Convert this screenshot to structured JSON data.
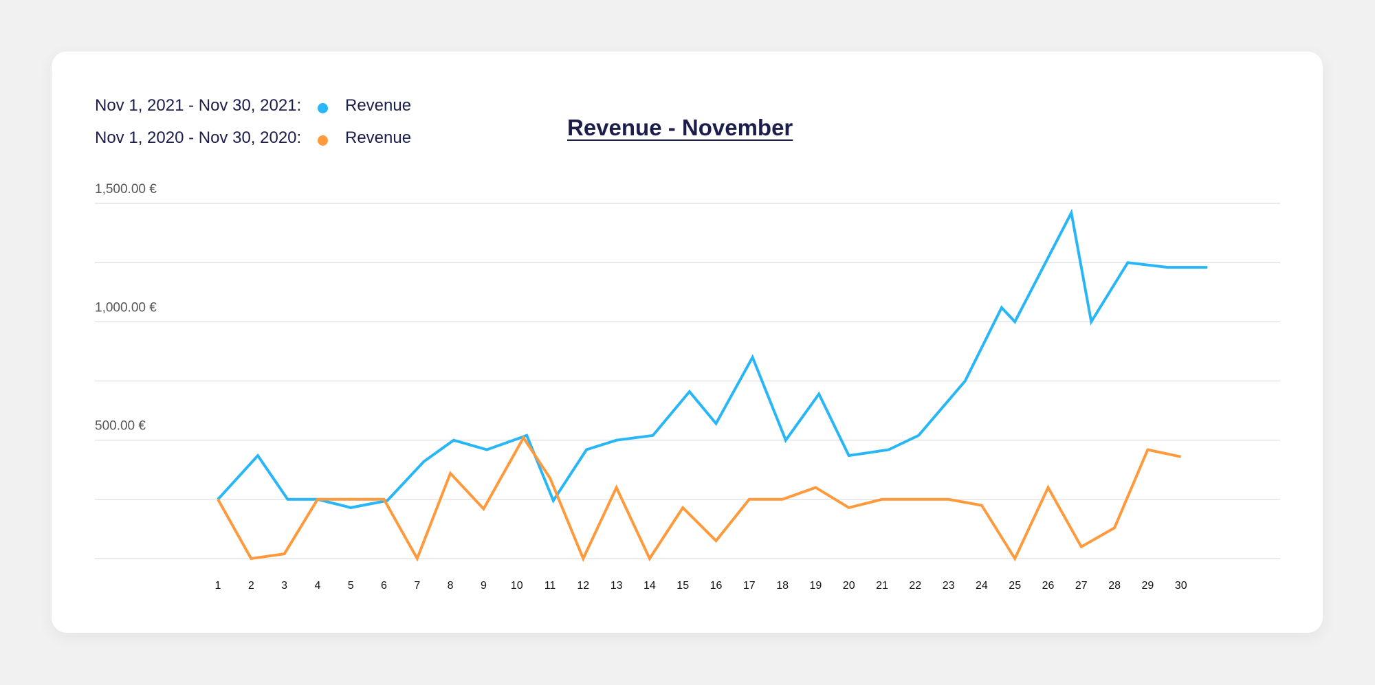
{
  "legend": [
    {
      "range": "Nov 1, 2021 - Nov 30, 2021:",
      "series": "Revenue",
      "color": "#29b6f6"
    },
    {
      "range": "Nov 1, 2020 - Nov 30, 2020:",
      "series": "Revenue",
      "color": "#ff9a3c"
    }
  ],
  "chart_data": {
    "type": "line",
    "title": "Revenue - November",
    "xlabel": "",
    "ylabel": "",
    "x": [
      "1",
      "2",
      "3",
      "4",
      "5",
      "6",
      "7",
      "8",
      "9",
      "10",
      "11",
      "12",
      "13",
      "14",
      "15",
      "16",
      "17",
      "18",
      "19",
      "20",
      "21",
      "22",
      "23",
      "24",
      "25",
      "26",
      "27",
      "28",
      "29",
      "30"
    ],
    "y_tick_labels": [
      "1,500.00 €",
      "1,000.00 €",
      "500.00 €"
    ],
    "y_tick_values": [
      1500,
      1000,
      500
    ],
    "ylim": [
      0,
      1500
    ],
    "grid": true,
    "series": [
      {
        "name": "Nov 1, 2021 - Nov 30, 2021: Revenue",
        "color": "#29b6f6",
        "x": [
          1,
          2.2,
          3.1,
          4,
          5,
          6.1,
          7.2,
          8.1,
          9.1,
          10.3,
          11.1,
          12.1,
          13,
          14.1,
          15.2,
          16,
          17.1,
          18.1,
          19.1,
          20,
          21.2,
          22.1,
          23.5,
          24.6,
          25,
          26.7,
          27.3,
          28.4,
          29.6,
          30.8
        ],
        "values": [
          250,
          435,
          250,
          250,
          215,
          245,
          410,
          500,
          460,
          520,
          245,
          460,
          500,
          520,
          705,
          570,
          850,
          500,
          695,
          435,
          460,
          520,
          750,
          1060,
          1000,
          1460,
          1000,
          1250,
          1230,
          1230
        ]
      },
      {
        "name": "Nov 1, 2020 - Nov 30, 2020: Revenue",
        "color": "#ff9a3c",
        "x": [
          1,
          2,
          3,
          4,
          5,
          6,
          7,
          8,
          9,
          10.2,
          11,
          12,
          13,
          14,
          15,
          16,
          17,
          18,
          19,
          20,
          21,
          22,
          23,
          24,
          25,
          26,
          27,
          28,
          29,
          30
        ],
        "values": [
          250,
          0,
          20,
          250,
          250,
          250,
          0,
          360,
          210,
          510,
          340,
          0,
          300,
          0,
          215,
          75,
          250,
          250,
          300,
          215,
          250,
          250,
          250,
          225,
          0,
          300,
          50,
          130,
          460,
          430
        ]
      }
    ]
  }
}
